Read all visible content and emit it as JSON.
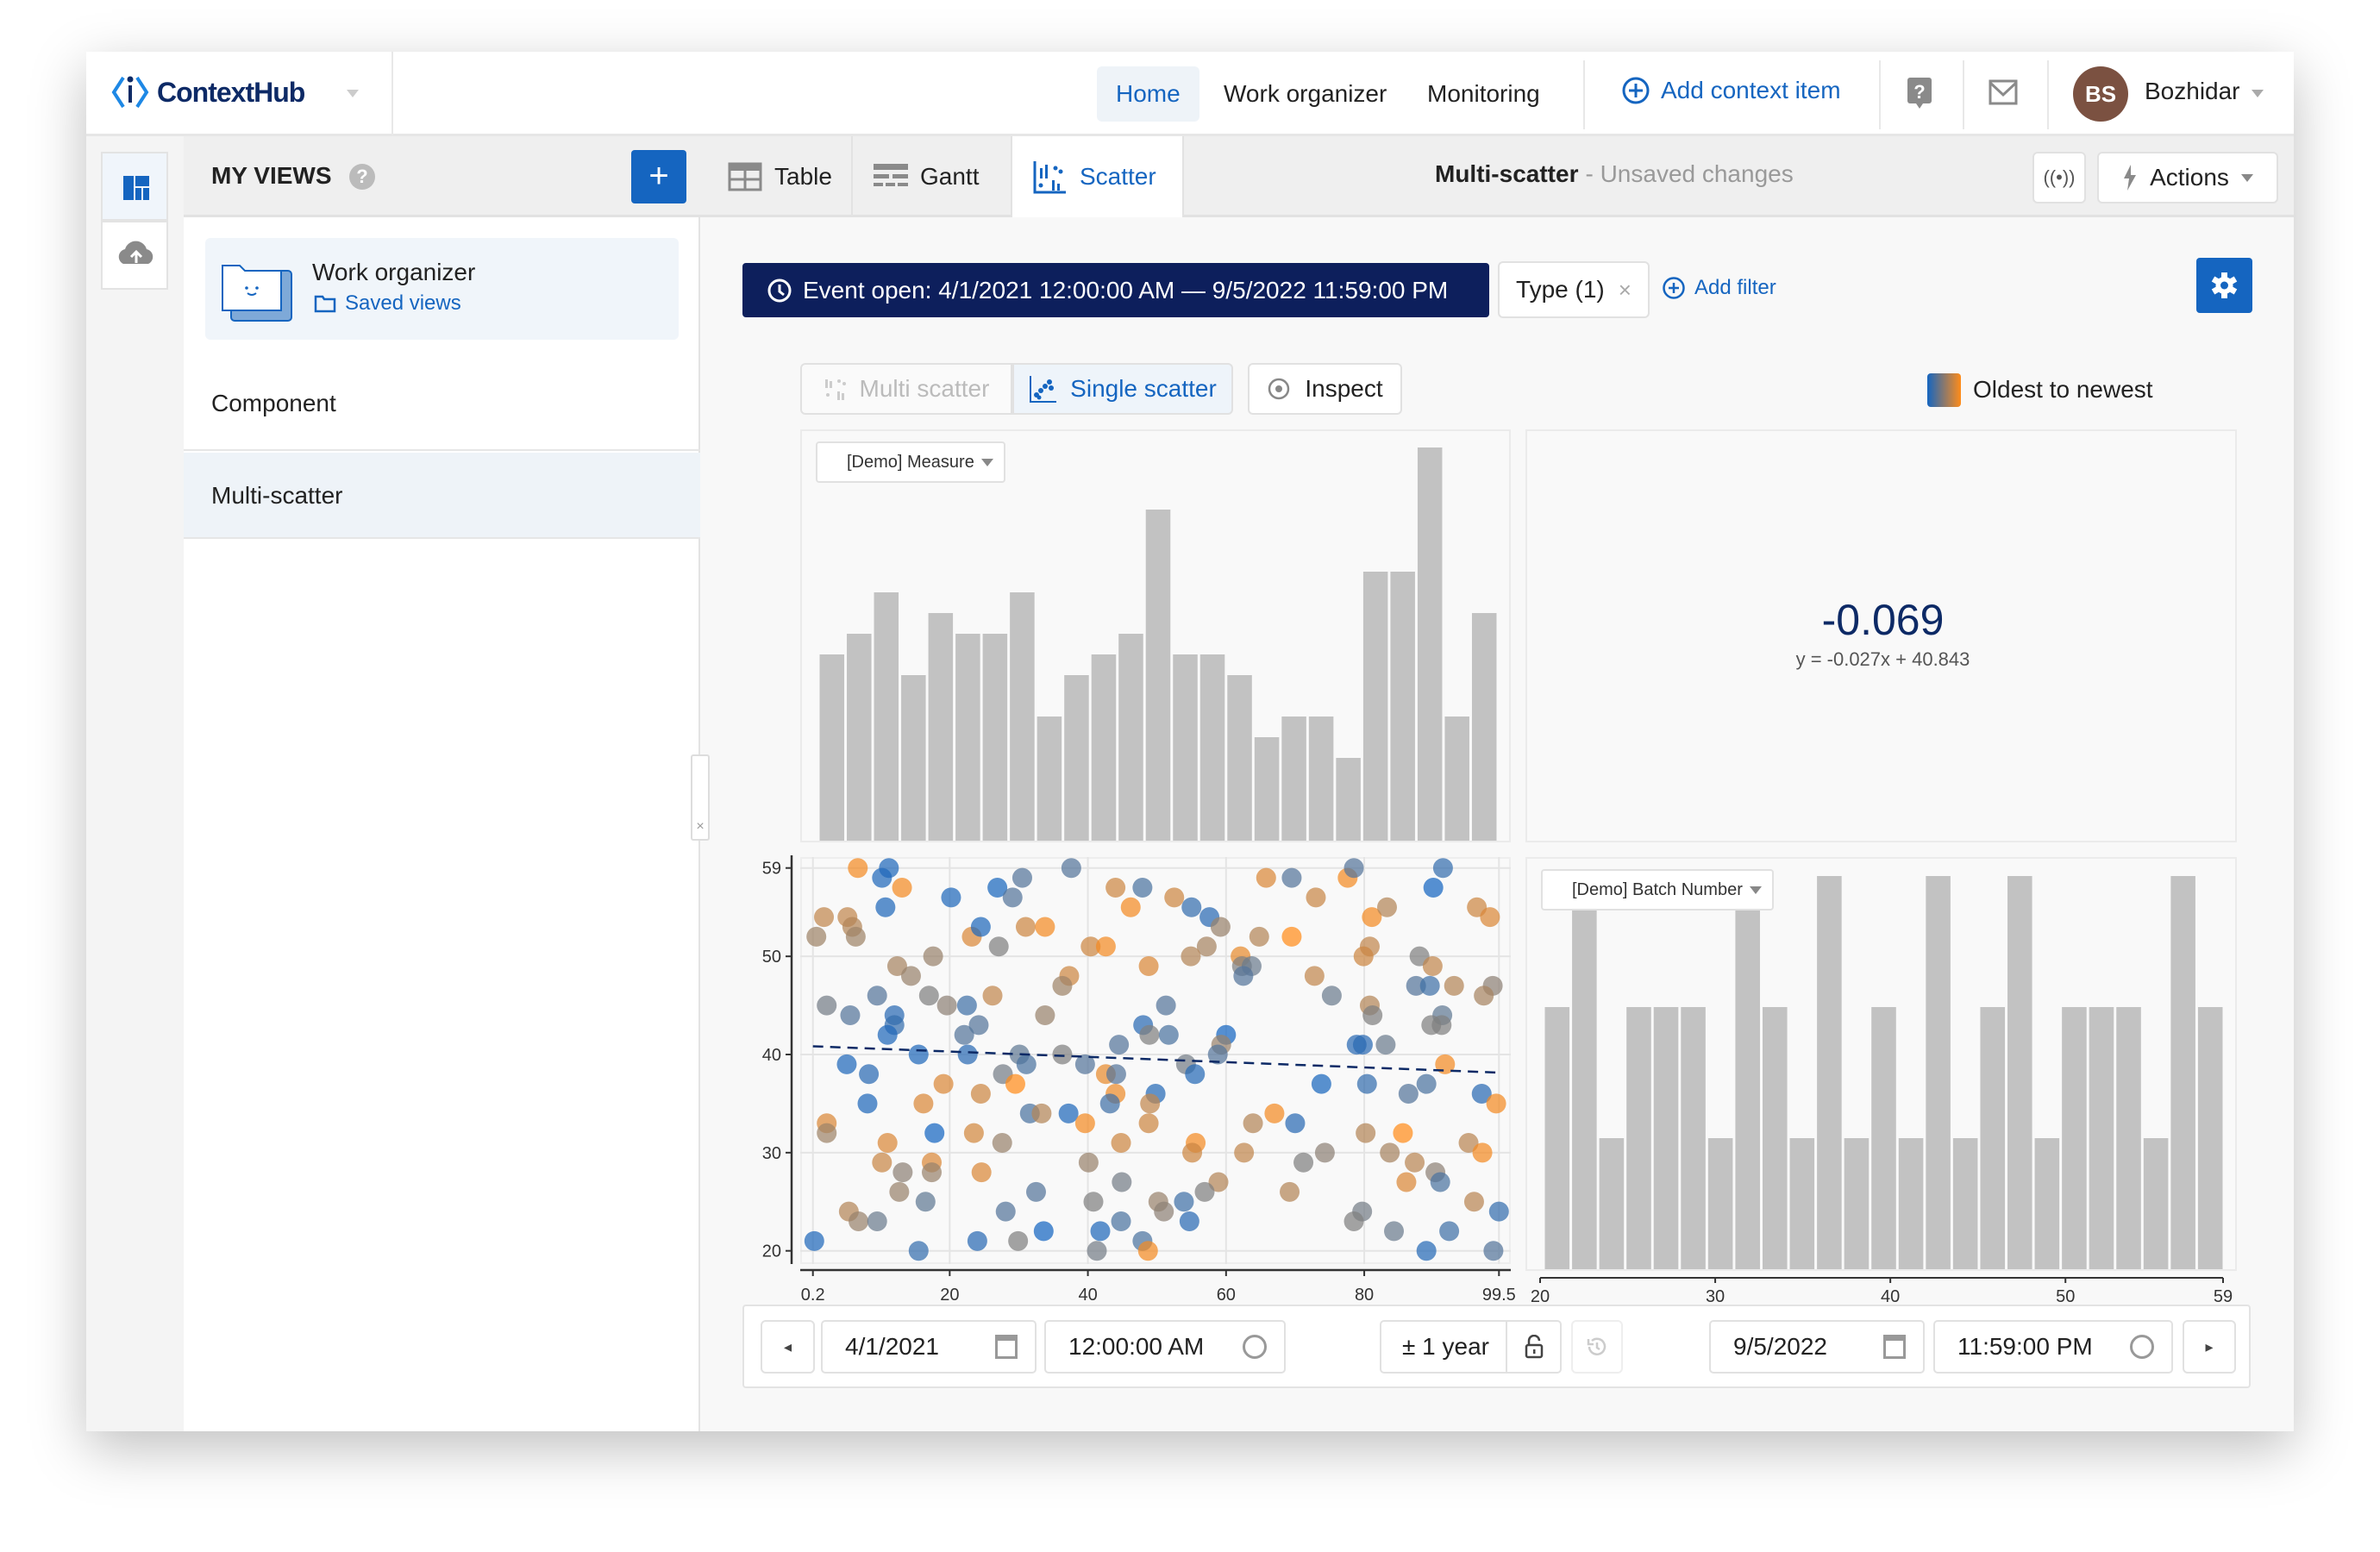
{
  "app": {
    "name": "ContextHub"
  },
  "topnav": {
    "items": [
      {
        "label": "Home",
        "active": true
      },
      {
        "label": "Work organizer"
      },
      {
        "label": "Monitoring"
      }
    ],
    "add_context": "Add context item",
    "user": {
      "initials": "BS",
      "name": "Bozhidar",
      "avatar_color": "#7b5141"
    }
  },
  "sidebar": {
    "title": "MY VIEWS",
    "card": {
      "title": "Work organizer",
      "link": "Saved views"
    },
    "items": [
      {
        "label": "Component"
      },
      {
        "label": "Multi-scatter",
        "selected": true
      }
    ]
  },
  "tabs": [
    {
      "label": "Table"
    },
    {
      "label": "Gantt"
    },
    {
      "label": "Scatter",
      "active": true
    }
  ],
  "view": {
    "name": "Multi-scatter",
    "status": "- Unsaved changes",
    "actions": "Actions"
  },
  "filters": {
    "event": "Event open: 4/1/2021 12:00:00 AM — 9/5/2022 11:59:00 PM",
    "type": "Type (1)",
    "add": "Add filter"
  },
  "modes": {
    "multi": "Multi scatter",
    "single": "Single scatter",
    "inspect": "Inspect",
    "active": "single"
  },
  "legend": {
    "label": "Oldest to newest",
    "from": "#1565c0",
    "to": "#ff8c1a"
  },
  "correlation": {
    "value": "-0.069",
    "equation": "y = -0.027x + 40.843"
  },
  "chart_data": [
    {
      "type": "bar",
      "role": "histogram-x",
      "dropdown": "[Demo] Measure",
      "values": [
        9,
        10,
        12,
        8,
        11,
        10,
        10,
        12,
        6,
        8,
        9,
        10,
        16,
        9,
        9,
        8,
        5,
        6,
        6,
        4,
        13,
        13,
        19,
        6,
        11
      ]
    },
    {
      "type": "bar",
      "role": "histogram-y",
      "dropdown": "[Demo] Batch Number",
      "values": [
        10,
        15,
        5,
        10,
        10,
        10,
        5,
        15,
        10,
        5,
        15,
        5,
        10,
        5,
        15,
        5,
        10,
        15,
        5,
        10,
        10,
        10,
        5,
        15,
        10
      ],
      "x_ticks": [
        "20",
        "30",
        "40",
        "50",
        "59"
      ],
      "xlim": [
        20,
        59
      ]
    },
    {
      "type": "scatter",
      "xlim": [
        0.2,
        99.5
      ],
      "ylim": [
        20,
        59
      ],
      "x_ticks": [
        "0.2",
        "20",
        "40",
        "60",
        "80",
        "99.5"
      ],
      "y_ticks": [
        "59",
        "50",
        "40",
        "30",
        "20"
      ],
      "grid": true,
      "trend": {
        "slope": -0.027,
        "intercept": 40.843,
        "style": "dashed",
        "color": "#0d2a66"
      },
      "color_scale": [
        "#1565c0",
        "#808080",
        "#ff8c1a"
      ],
      "points_format": [
        "x",
        "y",
        "age (0 oldest – 1 newest)"
      ],
      "points": [
        [
          6.7,
          59,
          0.95
        ],
        [
          11.2,
          59,
          0.05
        ],
        [
          10.2,
          58,
          0.05
        ],
        [
          13.1,
          57,
          0.95
        ],
        [
          10.7,
          55,
          0.05
        ],
        [
          20.2,
          56,
          0.05
        ],
        [
          26.9,
          57,
          0.02
        ],
        [
          29.1,
          56,
          0.3
        ],
        [
          30.5,
          58,
          0.3
        ],
        [
          37.6,
          59,
          0.3
        ],
        [
          44,
          57,
          0.8
        ],
        [
          46.2,
          55,
          0.95
        ],
        [
          1.8,
          54,
          0.75
        ],
        [
          5.2,
          54,
          0.75
        ],
        [
          5.9,
          53,
          0.7
        ],
        [
          0.7,
          52,
          0.62
        ],
        [
          6.4,
          52,
          0.62
        ],
        [
          23.2,
          52,
          0.85
        ],
        [
          24.5,
          53,
          0.05
        ],
        [
          31,
          53,
          0.8
        ],
        [
          33.8,
          53,
          0.95
        ],
        [
          27.1,
          51,
          0.5
        ],
        [
          40.4,
          51,
          0.8
        ],
        [
          42.6,
          51,
          0.95
        ],
        [
          17.6,
          50,
          0.6
        ],
        [
          12.4,
          49,
          0.65
        ],
        [
          14.4,
          48,
          0.6
        ],
        [
          37.3,
          48,
          0.8
        ],
        [
          36.3,
          47,
          0.62
        ],
        [
          26.2,
          46,
          0.75
        ],
        [
          9.5,
          46,
          0.3
        ],
        [
          17,
          46,
          0.5
        ],
        [
          2.2,
          45,
          0.45
        ],
        [
          19.6,
          45,
          0.55
        ],
        [
          22.5,
          45,
          0.2
        ],
        [
          5.6,
          44,
          0.3
        ],
        [
          12,
          44,
          0.1
        ],
        [
          33.8,
          44,
          0.6
        ],
        [
          12,
          43,
          0.15
        ],
        [
          24.2,
          43,
          0.3
        ],
        [
          11,
          42,
          0.05
        ],
        [
          22.1,
          42,
          0.3
        ],
        [
          44.5,
          41,
          0.3
        ],
        [
          15.5,
          40,
          0.05
        ],
        [
          22.6,
          40,
          0.1
        ],
        [
          30.1,
          40,
          0.35
        ],
        [
          36.3,
          40,
          0.5
        ],
        [
          5.1,
          39,
          0.05
        ],
        [
          31.1,
          39,
          0.25
        ],
        [
          39.6,
          39,
          0.3
        ],
        [
          8.3,
          38,
          0.1
        ],
        [
          27.7,
          38,
          0.45
        ],
        [
          42.6,
          38,
          0.9
        ],
        [
          44.1,
          38,
          0.3
        ],
        [
          19.1,
          37,
          0.85
        ],
        [
          29.5,
          37,
          1
        ],
        [
          24.5,
          36,
          0.8
        ],
        [
          44,
          36,
          0.92
        ],
        [
          8.1,
          35,
          0.05
        ],
        [
          16.2,
          35,
          0.85
        ],
        [
          43.2,
          35,
          0.2
        ],
        [
          31.6,
          34,
          0.25
        ],
        [
          33.3,
          34,
          0.7
        ],
        [
          37.2,
          34,
          0.05
        ],
        [
          2.2,
          33,
          0.85
        ],
        [
          39.6,
          33,
          0.95
        ],
        [
          2.2,
          32,
          0.62
        ],
        [
          17.8,
          32,
          0
        ],
        [
          23.5,
          32,
          0.82
        ],
        [
          11,
          31,
          0.85
        ],
        [
          27.6,
          31,
          0.6
        ],
        [
          44.8,
          31,
          0.8
        ],
        [
          10.2,
          29,
          0.78
        ],
        [
          17.4,
          29,
          0.85
        ],
        [
          40.1,
          29,
          0.6
        ],
        [
          13.2,
          28,
          0.55
        ],
        [
          17.4,
          28,
          0.6
        ],
        [
          24.6,
          28,
          0.85
        ],
        [
          12.7,
          26,
          0.6
        ],
        [
          32.5,
          26,
          0.3
        ],
        [
          16.5,
          25,
          0.35
        ],
        [
          40.8,
          25,
          0.5
        ],
        [
          5.4,
          24,
          0.7
        ],
        [
          28.1,
          24,
          0.3
        ],
        [
          6.8,
          23,
          0.6
        ],
        [
          9.5,
          23,
          0.4
        ],
        [
          44.8,
          23,
          0.25
        ],
        [
          44.9,
          27,
          0.45
        ],
        [
          33.6,
          22,
          0
        ],
        [
          41.8,
          22,
          0.05
        ],
        [
          0.4,
          21,
          0.05
        ],
        [
          24,
          21,
          0.1
        ],
        [
          29.9,
          21,
          0.5
        ],
        [
          15.5,
          20,
          0.15
        ],
        [
          41.3,
          20,
          0.45
        ],
        [
          47.9,
          57,
          0.25
        ],
        [
          52.5,
          56,
          0.8
        ],
        [
          55,
          55,
          0.15
        ],
        [
          57.6,
          54,
          0.1
        ],
        [
          59.2,
          53,
          0.6
        ],
        [
          57.2,
          51,
          0.65
        ],
        [
          54.9,
          50,
          0.7
        ],
        [
          48.8,
          49,
          0.85
        ],
        [
          65.8,
          58,
          0.85
        ],
        [
          69.5,
          58,
          0.3
        ],
        [
          73,
          56,
          0.78
        ],
        [
          77.6,
          58,
          0.95
        ],
        [
          78.5,
          59,
          0.3
        ],
        [
          64.8,
          52,
          0.7
        ],
        [
          69.5,
          52,
          1
        ],
        [
          62.1,
          50,
          0.9
        ],
        [
          62.3,
          49,
          0.5
        ],
        [
          63.7,
          49,
          0.4
        ],
        [
          62.5,
          48,
          0.3
        ],
        [
          72.8,
          48,
          0.75
        ],
        [
          75.3,
          46,
          0.4
        ],
        [
          80.8,
          51,
          0.75
        ],
        [
          79.9,
          50,
          0.8
        ],
        [
          81.1,
          54,
          0.95
        ],
        [
          83.3,
          55,
          0.7
        ],
        [
          91.4,
          59,
          0.15
        ],
        [
          90,
          57,
          0
        ],
        [
          96.3,
          55,
          0.8
        ],
        [
          98.2,
          54,
          0.85
        ],
        [
          88,
          50,
          0.5
        ],
        [
          89.9,
          49,
          0.75
        ],
        [
          87.5,
          47,
          0.3
        ],
        [
          89.5,
          47,
          0.2
        ],
        [
          93,
          47,
          0.7
        ],
        [
          98.6,
          47,
          0.55
        ],
        [
          97.3,
          46,
          0.65
        ],
        [
          80.8,
          45,
          0.7
        ],
        [
          81.2,
          44,
          0.5
        ],
        [
          91.3,
          44,
          0.35
        ],
        [
          89.7,
          43,
          0.5
        ],
        [
          91.2,
          43,
          0.5
        ],
        [
          51.3,
          45,
          0.3
        ],
        [
          48,
          43,
          0.1
        ],
        [
          48.9,
          42,
          0.5
        ],
        [
          51.7,
          42,
          0.25
        ],
        [
          60,
          42,
          0
        ],
        [
          59.3,
          41,
          0.6
        ],
        [
          58.8,
          40,
          0.3
        ],
        [
          78.9,
          41,
          0.1
        ],
        [
          79.8,
          41,
          0.1
        ],
        [
          83.1,
          41,
          0.4
        ],
        [
          54.2,
          39,
          0.45
        ],
        [
          55.5,
          38,
          0.08
        ],
        [
          91.7,
          39,
          0.95
        ],
        [
          73.8,
          37,
          0.02
        ],
        [
          80.4,
          37,
          0.15
        ],
        [
          86.4,
          36,
          0.3
        ],
        [
          89,
          37,
          0.25
        ],
        [
          97,
          36,
          0.1
        ],
        [
          99.1,
          35,
          0.95
        ],
        [
          49.8,
          36,
          0.08
        ],
        [
          49,
          35,
          0.75
        ],
        [
          48.8,
          33,
          0.8
        ],
        [
          63.9,
          33,
          0.7
        ],
        [
          67,
          34,
          0.95
        ],
        [
          70,
          33,
          0.1
        ],
        [
          80.2,
          32,
          0.7
        ],
        [
          85.6,
          32,
          1
        ],
        [
          95.1,
          31,
          0.72
        ],
        [
          97.1,
          30,
          0.95
        ],
        [
          55.6,
          31,
          0.95
        ],
        [
          55.1,
          30,
          0.8
        ],
        [
          62.6,
          30,
          0.75
        ],
        [
          71.2,
          29,
          0.5
        ],
        [
          74.3,
          30,
          0.55
        ],
        [
          83.7,
          30,
          0.65
        ],
        [
          87.3,
          29,
          0.72
        ],
        [
          90.3,
          28,
          0.55
        ],
        [
          91,
          27,
          0.25
        ],
        [
          86.1,
          27,
          0.85
        ],
        [
          58.9,
          27,
          0.7
        ],
        [
          56.9,
          26,
          0.5
        ],
        [
          69.2,
          26,
          0.7
        ],
        [
          50.2,
          25,
          0.6
        ],
        [
          51,
          24,
          0.55
        ],
        [
          53.9,
          25,
          0.2
        ],
        [
          54.7,
          23,
          0.1
        ],
        [
          95.9,
          25,
          0.72
        ],
        [
          99.5,
          24,
          0.15
        ],
        [
          79.7,
          24,
          0.45
        ],
        [
          78.5,
          23,
          0.5
        ],
        [
          84.3,
          22,
          0.4
        ],
        [
          92.3,
          22,
          0.2
        ],
        [
          47.9,
          21,
          0.25
        ],
        [
          48.7,
          20,
          0.95
        ],
        [
          89,
          20,
          0.08
        ],
        [
          98.7,
          20,
          0.3
        ]
      ]
    }
  ],
  "timebar": {
    "start_date": "4/1/2021",
    "start_time": "12:00:00 AM",
    "range": "± 1 year",
    "end_date": "9/5/2022",
    "end_time": "11:59:00 PM"
  }
}
